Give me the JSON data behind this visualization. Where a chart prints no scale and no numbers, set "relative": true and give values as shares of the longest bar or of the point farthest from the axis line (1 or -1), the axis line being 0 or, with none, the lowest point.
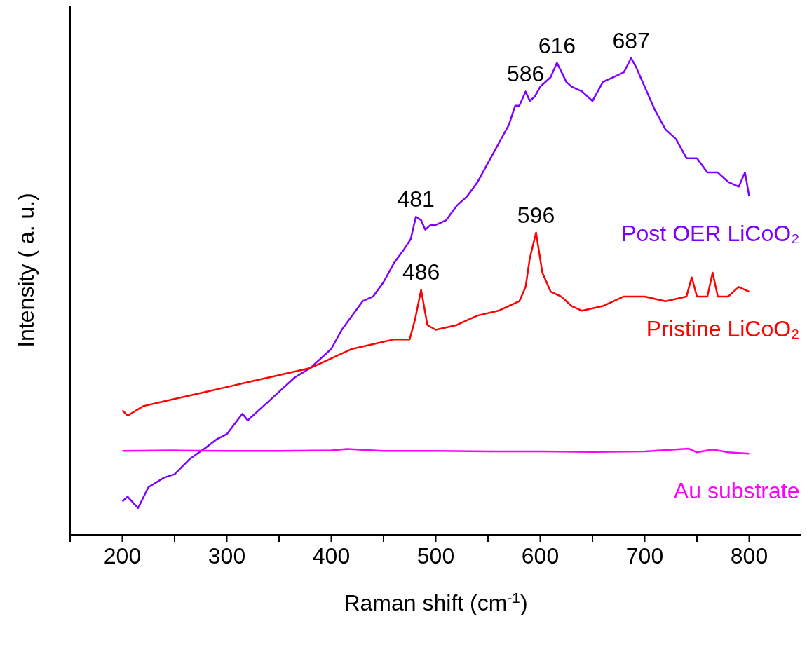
{
  "chart_data": {
    "type": "line",
    "relative": true,
    "xlabel": "Raman shift (cm$^{-1}$)",
    "ylabel": "Intensity ( a. u.)",
    "xlim": [
      150,
      850
    ],
    "xticks": [
      {
        "value": 150,
        "label": null
      },
      200,
      {
        "value": 250,
        "label": null
      },
      300,
      {
        "value": 350,
        "label": null
      },
      400,
      {
        "value": 450,
        "label": null
      },
      500,
      {
        "value": 550,
        "label": null
      },
      600,
      {
        "value": 650,
        "label": null
      },
      700,
      {
        "value": 750,
        "label": null
      },
      800,
      {
        "value": 850,
        "label": null
      }
    ],
    "marker": "none",
    "legend": false,
    "series": [
      {
        "name": "Post OER LiCoO₂",
        "color": "#7f00ff",
        "x": [
          200,
          205,
          215,
          225,
          240,
          250,
          265,
          280,
          290,
          300,
          310,
          315,
          320,
          330,
          340,
          350,
          365,
          380,
          390,
          400,
          410,
          420,
          430,
          440,
          450,
          460,
          470,
          476,
          481,
          486,
          490,
          495,
          500,
          510,
          520,
          530,
          540,
          550,
          560,
          570,
          576,
          580,
          586,
          590,
          595,
          600,
          610,
          616,
          625,
          630,
          640,
          650,
          660,
          670,
          680,
          687,
          692,
          700,
          710,
          720,
          730,
          740,
          750,
          760,
          770,
          780,
          790,
          796,
          800
        ],
        "values": [
          0.07,
          0.08,
          0.056,
          0.1,
          0.12,
          0.127,
          0.16,
          0.183,
          0.2,
          0.211,
          0.24,
          0.254,
          0.24,
          0.26,
          0.28,
          0.3,
          0.33,
          0.35,
          0.37,
          0.39,
          0.43,
          0.46,
          0.49,
          0.5,
          0.53,
          0.57,
          0.6,
          0.62,
          0.667,
          0.66,
          0.64,
          0.65,
          0.65,
          0.66,
          0.69,
          0.71,
          0.74,
          0.78,
          0.82,
          0.86,
          0.9,
          0.9,
          0.93,
          0.91,
          0.92,
          0.94,
          0.96,
          0.99,
          0.95,
          0.94,
          0.93,
          0.91,
          0.95,
          0.96,
          0.97,
          1.0,
          0.98,
          0.94,
          0.89,
          0.85,
          0.83,
          0.79,
          0.79,
          0.76,
          0.76,
          0.74,
          0.73,
          0.76,
          0.71
        ]
      },
      {
        "name": "Pristine LiCoO₂",
        "color": "#ff0000",
        "x": [
          200,
          205,
          220,
          240,
          260,
          280,
          300,
          320,
          340,
          360,
          380,
          400,
          420,
          440,
          460,
          475,
          480,
          486,
          492,
          500,
          520,
          540,
          560,
          580,
          586,
          590,
          596,
          602,
          610,
          620,
          630,
          640,
          660,
          680,
          700,
          720,
          740,
          745,
          750,
          760,
          765,
          770,
          780,
          790,
          800
        ],
        "values": [
          0.261,
          0.25,
          0.27,
          0.28,
          0.29,
          0.3,
          0.31,
          0.32,
          0.33,
          0.34,
          0.35,
          0.37,
          0.39,
          0.4,
          0.41,
          0.41,
          0.45,
          0.514,
          0.44,
          0.43,
          0.44,
          0.46,
          0.47,
          0.49,
          0.52,
          0.58,
          0.634,
          0.55,
          0.51,
          0.5,
          0.48,
          0.47,
          0.48,
          0.5,
          0.5,
          0.49,
          0.5,
          0.54,
          0.5,
          0.5,
          0.55,
          0.5,
          0.5,
          0.52,
          0.51
        ]
      },
      {
        "name": "Au substrate",
        "color": "#ff00ff",
        "x": [
          200,
          250,
          300,
          350,
          400,
          415,
          450,
          500,
          550,
          600,
          650,
          700,
          742,
          750,
          765,
          780,
          800
        ],
        "values": [
          0.176,
          0.177,
          0.176,
          0.176,
          0.177,
          0.18,
          0.176,
          0.176,
          0.175,
          0.175,
          0.174,
          0.175,
          0.181,
          0.173,
          0.179,
          0.173,
          0.17
        ]
      }
    ],
    "annotations": [
      {
        "text": "481",
        "x": 481,
        "y": 0.667
      },
      {
        "text": "486",
        "x": 486,
        "y": 0.514
      },
      {
        "text": "586",
        "x": 586,
        "y": 0.93
      },
      {
        "text": "596",
        "x": 596,
        "y": 0.634
      },
      {
        "text": "616",
        "x": 616,
        "y": 0.99
      },
      {
        "text": "687",
        "x": 687,
        "y": 1.0
      }
    ]
  }
}
